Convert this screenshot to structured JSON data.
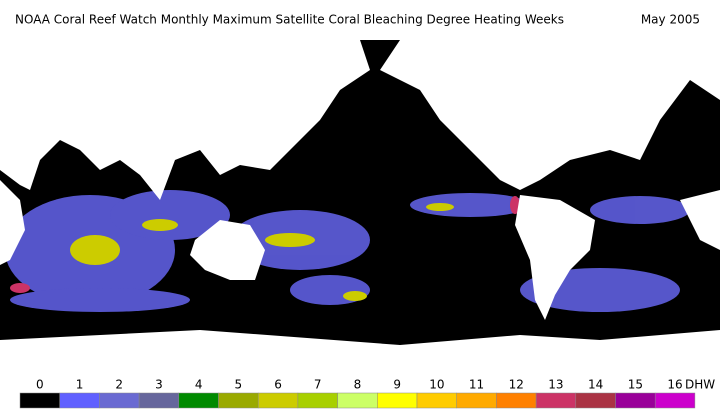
{
  "title": "NOAA Coral Reef Watch Monthly Maximum Satellite Coral Bleaching Degree Heating Weeks",
  "date": "May 2005",
  "legend": {
    "unit": "DHW",
    "levels": [
      0,
      1,
      2,
      3,
      4,
      5,
      6,
      7,
      8,
      9,
      10,
      11,
      12,
      13,
      14,
      15,
      16
    ],
    "colors": [
      "#000000",
      "#6060ff",
      "#6a6ad2",
      "#66669c",
      "#008a00",
      "#9aaa00",
      "#cccc00",
      "#a8d000",
      "#ccff66",
      "#ffff00",
      "#ffcc00",
      "#ffaa00",
      "#ff8000",
      "#cc3366",
      "#aa3344",
      "#990099",
      "#cc00cc"
    ]
  }
}
